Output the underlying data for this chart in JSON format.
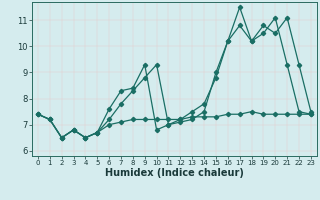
{
  "xlabel": "Humidex (Indice chaleur)",
  "background_color": "#d5ecee",
  "grid_color": "#b8d8da",
  "line_color": "#1a6e64",
  "xlim": [
    -0.5,
    23.5
  ],
  "ylim": [
    5.8,
    11.7
  ],
  "yticks": [
    6,
    7,
    8,
    9,
    10,
    11
  ],
  "xticks": [
    0,
    1,
    2,
    3,
    4,
    5,
    6,
    7,
    8,
    9,
    10,
    11,
    12,
    13,
    14,
    15,
    16,
    17,
    18,
    19,
    20,
    21,
    22,
    23
  ],
  "series": [
    [
      7.4,
      7.2,
      6.5,
      6.8,
      6.5,
      6.7,
      7.6,
      8.3,
      8.4,
      9.3,
      6.8,
      7.0,
      7.2,
      7.5,
      7.8,
      8.8,
      10.2,
      11.5,
      10.2,
      10.5,
      11.1,
      9.3,
      7.5,
      7.4
    ],
    [
      7.4,
      7.2,
      6.5,
      6.8,
      6.5,
      6.7,
      7.2,
      7.8,
      8.3,
      8.8,
      9.3,
      7.0,
      7.1,
      7.2,
      7.5,
      9.0,
      10.2,
      10.8,
      10.2,
      10.8,
      10.5,
      11.1,
      9.3,
      7.5
    ],
    [
      7.4,
      7.2,
      6.5,
      6.8,
      6.5,
      6.7,
      7.0,
      7.1,
      7.2,
      7.2,
      7.2,
      7.2,
      7.2,
      7.3,
      7.3,
      7.3,
      7.4,
      7.4,
      7.5,
      7.4,
      7.4,
      7.4,
      7.4,
      7.4
    ]
  ]
}
